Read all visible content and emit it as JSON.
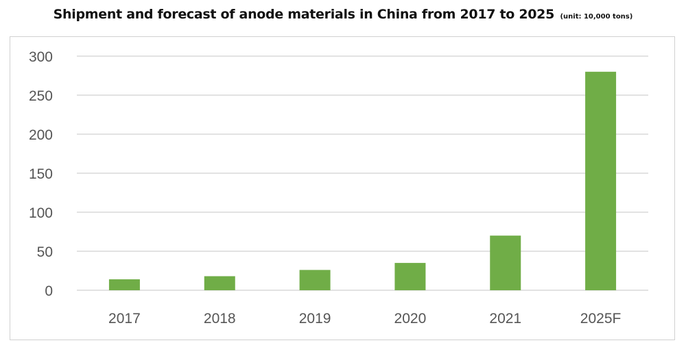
{
  "title": "Shipment and forecast of anode materials in China from 2017 to 2025",
  "unit_note": "(unit: 10,000 tons)",
  "colors": {
    "bar": "#70ad47",
    "grid": "#d9d9d9",
    "tick_text": "#555555",
    "frame": "#d0d0d0"
  },
  "chart_data": {
    "type": "bar",
    "title": "Shipment and forecast of anode materials in China from 2017 to 2025",
    "unit": "(unit: 10,000 tons)",
    "categories": [
      "2017",
      "2018",
      "2019",
      "2020",
      "2021",
      "2025F"
    ],
    "values": [
      14,
      18,
      26,
      35,
      70,
      280
    ],
    "ylim": [
      0,
      300
    ],
    "yticks": [
      0,
      50,
      100,
      150,
      200,
      250,
      300
    ],
    "grid": true,
    "legend": "none"
  }
}
